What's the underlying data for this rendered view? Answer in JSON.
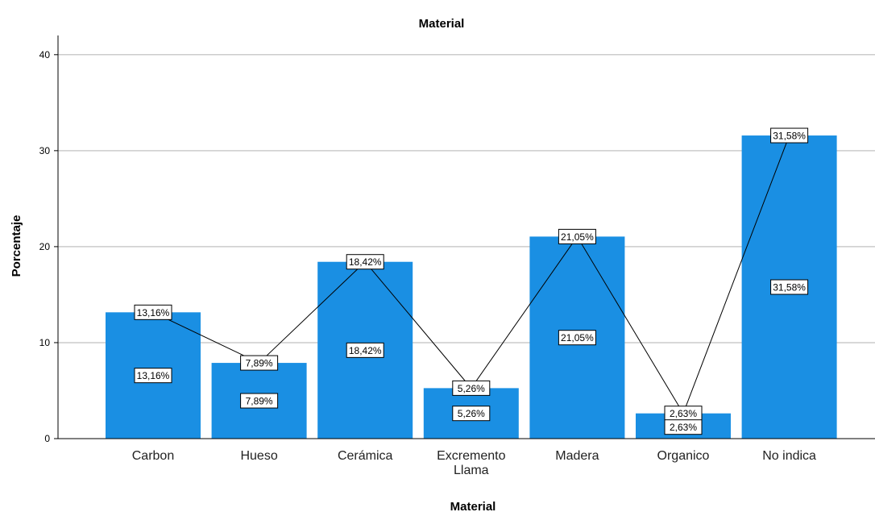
{
  "chart_data": {
    "type": "bar",
    "title": "Material",
    "xlabel": "Material",
    "ylabel": "Porcentaje",
    "categories": [
      [
        "Carbon"
      ],
      [
        "Hueso"
      ],
      [
        "Cerámica"
      ],
      [
        "Excremento",
        "Llama"
      ],
      [
        "Madera"
      ],
      [
        "Organico"
      ],
      [
        "No indica"
      ]
    ],
    "values": [
      13.16,
      7.89,
      18.42,
      5.26,
      21.05,
      2.63,
      31.58
    ],
    "value_labels": [
      "13,16%",
      "7,89%",
      "18,42%",
      "5,26%",
      "21,05%",
      "2,63%",
      "31,58%"
    ],
    "yticks": [
      "0",
      "10",
      "20",
      "30",
      "40"
    ],
    "ylim": [
      0,
      42
    ],
    "grid": true,
    "overlay_line": true,
    "colors": {
      "bar": "#1a8fe3",
      "grid": "#cccccc",
      "line": "#000000"
    }
  }
}
